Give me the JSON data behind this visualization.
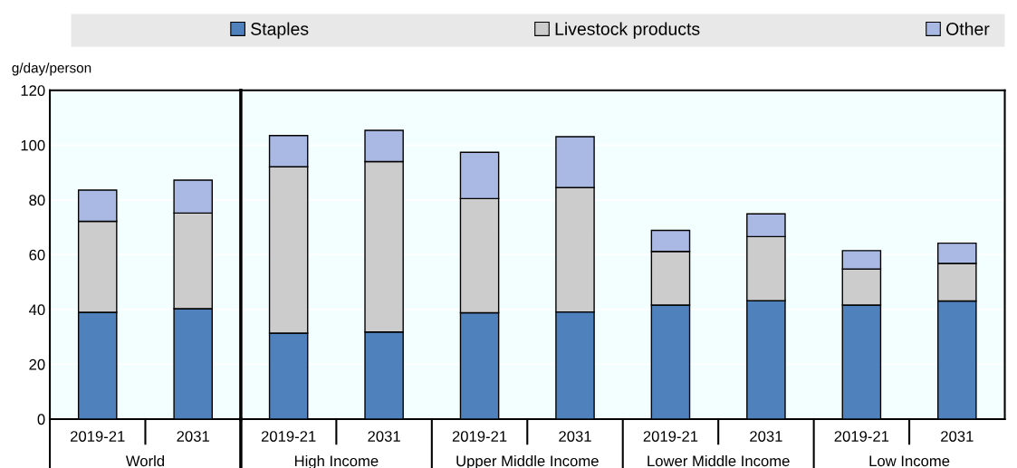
{
  "chart_data": [
    {
      "type": "bar",
      "stacked": true,
      "ylabel": "g/day/person",
      "categories": [
        "2019-21",
        "2031"
      ],
      "annotations": [
        "World"
      ],
      "series": [
        {
          "name": "Staples",
          "color": "#4f81bd",
          "values": [
            39.0,
            40.3
          ]
        },
        {
          "name": "Livestock products",
          "color": "#cccccc",
          "values": [
            33.2,
            34.9
          ]
        },
        {
          "name": "Other",
          "color": "#a9b9e3",
          "values": [
            11.4,
            12.0
          ]
        }
      ],
      "ylim": [
        0,
        120
      ],
      "yticks": [
        0,
        20,
        40,
        60,
        80,
        100,
        120
      ],
      "grid": "y",
      "legend": "top"
    },
    {
      "type": "bar",
      "stacked": true,
      "categories": [
        "2019-21",
        "2031",
        "2019-21",
        "2031",
        "2019-21",
        "2031",
        "2019-21",
        "2031"
      ],
      "annotations": [
        "High Income",
        "Upper Middle Income",
        "Lower Middle Income",
        "Low Income"
      ],
      "series": [
        {
          "color": "#4f81bd",
          "values": [
            31.4,
            31.8,
            38.8,
            39.1,
            41.6,
            43.2,
            41.6,
            43.1
          ]
        },
        {
          "color": "#cccccc",
          "values": [
            60.7,
            62.2,
            41.7,
            45.4,
            19.6,
            23.4,
            13.2,
            13.7
          ]
        },
        {
          "color": "#a9b9e3",
          "values": [
            11.4,
            11.4,
            16.9,
            18.6,
            7.7,
            8.3,
            6.7,
            7.4
          ]
        }
      ],
      "ylim": [
        0,
        120
      ],
      "yticks": [
        0,
        20,
        40,
        60,
        80,
        100,
        120
      ],
      "grid": "y",
      "tick_labels": "x"
    }
  ]
}
